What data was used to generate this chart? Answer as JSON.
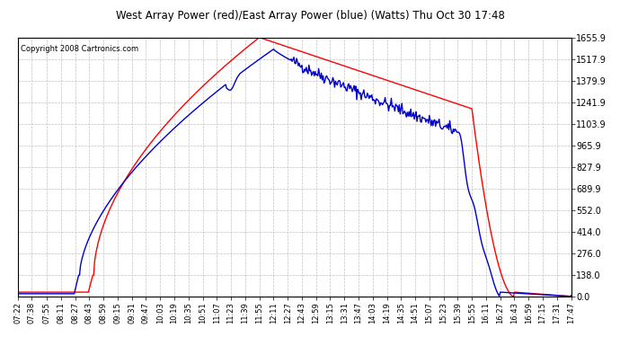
{
  "title": "West Array Power (red)/East Array Power (blue) (Watts) Thu Oct 30 17:48",
  "copyright": "Copyright 2008 Cartronics.com",
  "background_color": "#ffffff",
  "plot_bg_color": "#ffffff",
  "grid_color": "#bbbbbb",
  "grid_style": "--",
  "y_ticks": [
    0.0,
    138.0,
    276.0,
    414.0,
    552.0,
    689.9,
    827.9,
    965.9,
    1103.9,
    1241.9,
    1379.9,
    1517.9,
    1655.9
  ],
  "x_labels": [
    "07:22",
    "07:38",
    "07:55",
    "08:11",
    "08:27",
    "08:43",
    "08:59",
    "09:15",
    "09:31",
    "09:47",
    "10:03",
    "10:19",
    "10:35",
    "10:51",
    "11:07",
    "11:23",
    "11:39",
    "11:55",
    "12:11",
    "12:27",
    "12:43",
    "12:59",
    "13:15",
    "13:31",
    "13:47",
    "14:03",
    "14:19",
    "14:35",
    "14:51",
    "15:07",
    "15:23",
    "15:39",
    "15:55",
    "16:11",
    "16:27",
    "16:43",
    "16:59",
    "17:15",
    "17:31",
    "17:47"
  ],
  "red_color": "#ff0000",
  "blue_color": "#0000cc",
  "line_width": 1.0
}
